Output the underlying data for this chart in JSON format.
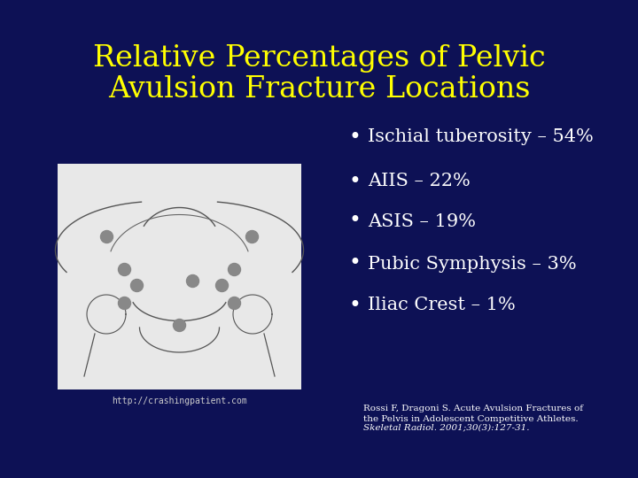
{
  "title_line1": "Relative Percentages of Pelvic",
  "title_line2": "Avulsion Fracture Locations",
  "title_color": "#FFFF00",
  "background_color": "#0D1155",
  "bullet_points": [
    "Ischial tuberosity – 54%",
    "AIIS – 22%",
    "ASIS – 19%",
    "Pubic Symphysis – 3%",
    "Iliac Crest – 1%"
  ],
  "bullet_color": "#FFFFFF",
  "image_url_text": "http://crashingpatient.com",
  "citation_line1": "Rossi F, Dragoni S. Acute Avulsion Fractures of",
  "citation_line2": "the Pelvis in Adolescent Competitive Athletes.",
  "citation_line3": "Skeletal Radiol. 2001;30(3):127-31.",
  "citation_color": "#FFFFFF",
  "title_fontsize": 24,
  "bullet_fontsize": 15,
  "citation_fontsize": 7.5
}
